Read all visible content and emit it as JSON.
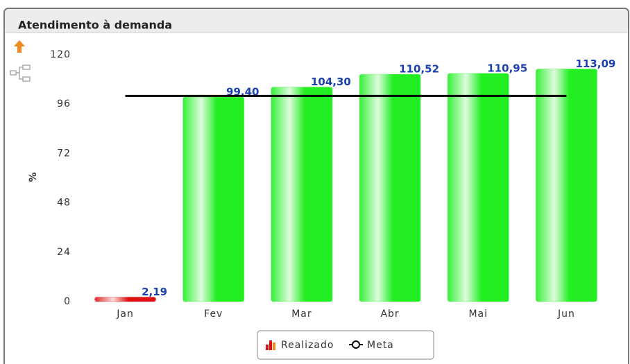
{
  "chart_data": {
    "type": "bar",
    "title": "Atendimento à demanda",
    "ylabel": "%",
    "categories": [
      "Jan",
      "Fev",
      "Mar",
      "Abr",
      "Mai",
      "Jun"
    ],
    "series": [
      {
        "name": "Realizado",
        "colors": [
          "#dd1111",
          "#22ee22",
          "#22ee22",
          "#22ee22",
          "#22ee22",
          "#22ee22"
        ],
        "values": [
          2.19,
          99.4,
          104.3,
          110.52,
          110.95,
          113.09
        ],
        "value_labels": [
          "2,19",
          "99,40",
          "104,30",
          "110,52",
          "110,95",
          "113,09"
        ]
      },
      {
        "name": "Meta",
        "type": "line",
        "color": "#000000",
        "values": [
          100,
          100,
          100,
          100,
          100,
          100
        ]
      }
    ],
    "ylim": [
      0,
      120
    ],
    "yticks": [
      0,
      24,
      48,
      72,
      96,
      120
    ],
    "grid": false,
    "legend": "bottom"
  }
}
